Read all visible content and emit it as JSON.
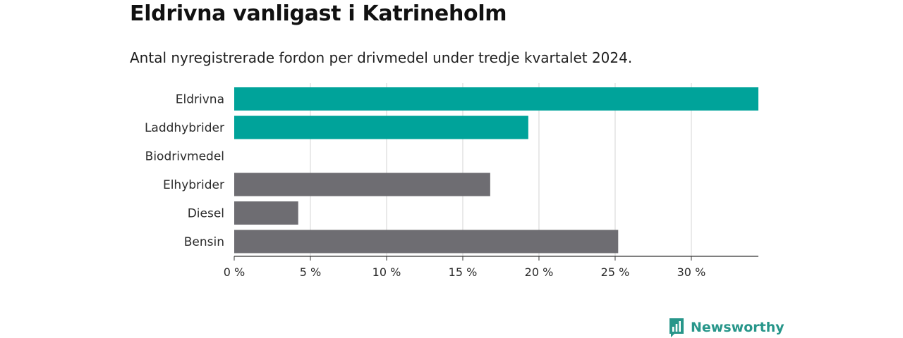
{
  "header": {
    "title": "Eldrivna vanligast i Katrineholm",
    "subtitle": "Antal nyregistrerade fordon per drivmedel under tredje kvartalet 2024."
  },
  "brand": {
    "name": "Newsworthy",
    "icon": "newsworthy-logo-icon",
    "color": "#27968a"
  },
  "colors": {
    "highlight": "#00a39a",
    "other": "#6e6d72",
    "grid": "#d4d4d4",
    "axis": "#333333"
  },
  "chart_data": {
    "type": "bar",
    "orientation": "horizontal",
    "title": "Eldrivna vanligast i Katrineholm",
    "subtitle": "Antal nyregistrerade fordon per drivmedel under tredje kvartalet 2024.",
    "categories": [
      "Eldrivna",
      "Laddhybrider",
      "Biodrivmedel",
      "Elhybrider",
      "Diesel",
      "Bensin"
    ],
    "values": [
      34.4,
      19.3,
      0,
      16.8,
      4.2,
      25.2
    ],
    "highlighted": [
      true,
      true,
      false,
      false,
      false,
      false
    ],
    "unit": "%",
    "xlim": [
      0,
      34.4
    ],
    "xticks": [
      0,
      5,
      10,
      15,
      20,
      25,
      30
    ],
    "xtick_labels": [
      "0 %",
      "5 %",
      "10 %",
      "15 %",
      "20 %",
      "25 %",
      "30 %"
    ],
    "grid": true,
    "legend": "none",
    "xlabel": "",
    "ylabel": ""
  }
}
